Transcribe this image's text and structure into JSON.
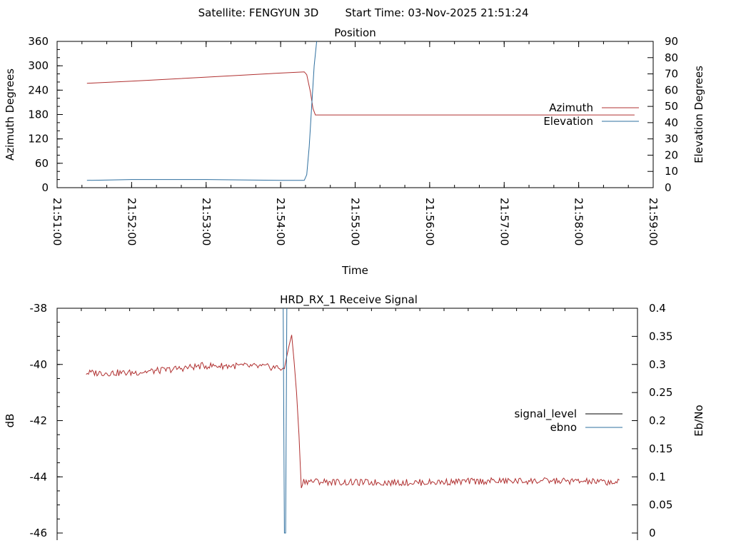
{
  "header": {
    "satellite": "Satellite: FENGYUN 3D",
    "start_time": "Start Time: 03-Nov-2025 21:51:24"
  },
  "colors": {
    "azimuth": "#b03030",
    "elevation": "#2e6f9f",
    "signal_level": "#b03030",
    "ebno": "#2e6f9f",
    "signal_level_legend": "#000000",
    "ebno_legend": "#2e6f9f"
  },
  "chart_data": [
    {
      "type": "line",
      "title": "Position",
      "xlabel": "Time",
      "ylabel": "Azimuth Degrees",
      "y2label": "Elevation Degrees",
      "xlim": [
        "21:51:00",
        "21:59:00"
      ],
      "ylim": [
        0,
        360
      ],
      "y2lim": [
        0,
        90
      ],
      "xticks": [
        "21:51:00",
        "21:52:00",
        "21:53:00",
        "21:54:00",
        "21:55:00",
        "21:56:00",
        "21:57:00",
        "21:58:00",
        "21:59:00"
      ],
      "yticks": [
        0,
        60,
        120,
        180,
        240,
        300,
        360
      ],
      "y2ticks": [
        0,
        10,
        20,
        30,
        40,
        50,
        60,
        70,
        80,
        90
      ],
      "legend": "right",
      "series": [
        {
          "name": "Azimuth",
          "axis": "y",
          "points": [
            [
              "21:51:24",
              257
            ],
            [
              "21:52:00",
              262
            ],
            [
              "21:53:00",
              272
            ],
            [
              "21:54:00",
              282
            ],
            [
              "21:54:19",
              285
            ],
            [
              "21:54:21",
              278
            ],
            [
              "21:54:24",
              235
            ],
            [
              "21:54:26",
              195
            ],
            [
              "21:54:28",
              179
            ],
            [
              "21:55:00",
              179
            ],
            [
              "21:56:00",
              179
            ],
            [
              "21:57:00",
              179
            ],
            [
              "21:58:00",
              179
            ],
            [
              "21:58:45",
              179
            ]
          ]
        },
        {
          "name": "Elevation",
          "axis": "y2",
          "points": [
            [
              "21:51:24",
              4.5
            ],
            [
              "21:52:00",
              5
            ],
            [
              "21:53:00",
              5
            ],
            [
              "21:54:00",
              4.5
            ],
            [
              "21:54:19",
              4.5
            ],
            [
              "21:54:21",
              8
            ],
            [
              "21:54:23",
              25
            ],
            [
              "21:54:25",
              50
            ],
            [
              "21:54:27",
              75
            ],
            [
              "21:54:29",
              90
            ]
          ]
        }
      ]
    },
    {
      "type": "line",
      "title": "HRD_RX_1 Receive Signal",
      "ylabel": "dB",
      "y2label": "Eb/No",
      "ylim": [
        -46,
        -38
      ],
      "y2lim": [
        0,
        0.4
      ],
      "yticks": [
        -46,
        -44,
        -42,
        -40,
        -38
      ],
      "y2ticks": [
        0,
        0.05,
        0.1,
        0.15,
        0.2,
        0.25,
        0.3,
        0.35,
        0.4
      ],
      "legend": "right",
      "series": [
        {
          "name": "signal_level",
          "axis": "y",
          "points": [
            [
              "21:51:24",
              -40.3
            ],
            [
              "21:52:00",
              -40.3
            ],
            [
              "21:52:30",
              -40.2
            ],
            [
              "21:53:00",
              -40.05
            ],
            [
              "21:53:30",
              -40.05
            ],
            [
              "21:54:00",
              -40.1
            ],
            [
              "21:54:08",
              -40.15
            ],
            [
              "21:54:10",
              -39.7
            ],
            [
              "21:54:12",
              -39.3
            ],
            [
              "21:54:14",
              -38.95
            ],
            [
              "21:54:16",
              -39.9
            ],
            [
              "21:54:18",
              -41.0
            ],
            [
              "21:54:20",
              -42.5
            ],
            [
              "21:54:22",
              -44.4
            ],
            [
              "21:54:24",
              -44.15
            ],
            [
              "21:55:00",
              -44.2
            ],
            [
              "21:56:00",
              -44.2
            ],
            [
              "21:57:00",
              -44.15
            ],
            [
              "21:58:00",
              -44.15
            ],
            [
              "21:58:45",
              -44.2
            ]
          ],
          "noise_db": 0.12
        },
        {
          "name": "ebno",
          "axis": "y2",
          "points": [
            [
              "21:54:07",
              0.4
            ],
            [
              "21:54:08",
              0.0
            ],
            [
              "21:54:09",
              0.0
            ],
            [
              "21:54:10",
              0.4
            ]
          ]
        }
      ]
    }
  ]
}
